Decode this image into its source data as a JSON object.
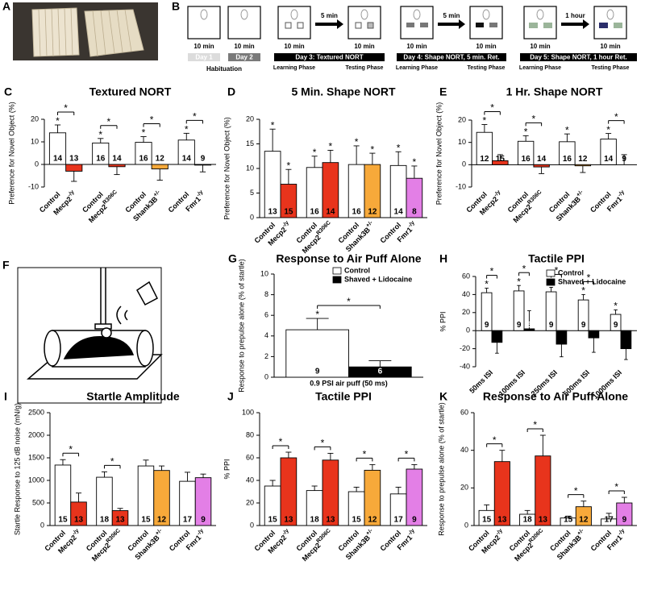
{
  "figure": {
    "panel_a": "A",
    "panel_f": "F"
  },
  "protocol": {
    "panel": "B",
    "box_labels": [
      "10 min",
      "10 min",
      "10 min",
      "10 min",
      "10 min",
      "10 min",
      "10 min",
      "10 min"
    ],
    "intervals": [
      "5 min",
      "5 min",
      "1 hour"
    ],
    "days": [
      "Day 1",
      "Day 2",
      "Day 3: Textured NORT",
      "Day 4: Shape NORT, 5 min. Ret.",
      "Day 5: Shape NORT, 1 hour Ret."
    ],
    "habituation": "Habituation",
    "phases": [
      "Learning Phase",
      "Testing Phase",
      "Learning Phase",
      "Testing Phase",
      "Learning Phase",
      "Testing Phase"
    ]
  },
  "chart_data": [
    {
      "type": "bar",
      "panel": "C",
      "title": "Textured NORT",
      "ylabel": "Preference for Novel Object (%)",
      "categories": [
        "Control",
        "Mecp2",
        "Control",
        "Mecp2",
        "Control",
        "Shank3B",
        "Control",
        "Fmr1"
      ],
      "category_sup": [
        null,
        "-/y",
        null,
        "R306C",
        null,
        "+/-",
        null,
        "-/y"
      ],
      "values": [
        14,
        -3,
        9.5,
        -1,
        9.8,
        -2,
        10.8,
        -0.3
      ],
      "errors": [
        3.5,
        4.5,
        2,
        3.5,
        2.5,
        5,
        3,
        3
      ],
      "colors": [
        "#ffffff",
        "#e8341c",
        "#ffffff",
        "#e8341c",
        "#ffffff",
        "#f7a93a",
        "#ffffff",
        "#e37fe6"
      ],
      "n": [
        14,
        13,
        16,
        14,
        16,
        12,
        14,
        9
      ],
      "stars": [
        "*",
        null,
        "*",
        null,
        "*",
        null,
        "*",
        null
      ],
      "brackets": [
        {
          "bars": [
            0,
            1
          ],
          "label": "*"
        },
        {
          "bars": [
            2,
            3
          ],
          "label": "*"
        },
        {
          "bars": [
            4,
            5
          ],
          "label": "*"
        },
        {
          "bars": [
            6,
            7
          ],
          "label": "*"
        }
      ],
      "ylim": [
        -10,
        20
      ],
      "yticks": [
        -10,
        0,
        10,
        20
      ]
    },
    {
      "type": "bar",
      "panel": "D",
      "title": "5 Min. Shape NORT",
      "ylabel": "Preference for Novel Object (%)",
      "categories": [
        "Control",
        "Mecp2",
        "Control",
        "Mecp2",
        "Control",
        "Shank3B",
        "Control",
        "Fmr1"
      ],
      "category_sup": [
        null,
        "-/y",
        null,
        "R306C",
        null,
        "+/-",
        null,
        "-/y"
      ],
      "values": [
        13.5,
        6.8,
        10.2,
        11.2,
        10.8,
        10.8,
        10.6,
        8
      ],
      "errors": [
        4.5,
        3,
        2.3,
        2.5,
        3.8,
        2.3,
        2.8,
        2.5
      ],
      "colors": [
        "#ffffff",
        "#e8341c",
        "#ffffff",
        "#e8341c",
        "#ffffff",
        "#f7a93a",
        "#ffffff",
        "#e37fe6"
      ],
      "n": [
        13,
        15,
        16,
        14,
        16,
        12,
        14,
        8
      ],
      "stars": [
        "*",
        "*",
        "*",
        "*",
        "*",
        "*",
        "*",
        "*"
      ],
      "brackets": [],
      "ylim": [
        0,
        20
      ],
      "yticks": [
        0,
        5,
        10,
        15,
        20
      ]
    },
    {
      "type": "bar",
      "panel": "E",
      "title": "1 Hr. Shape NORT",
      "ylabel": "Preference for Novel Object (%)",
      "categories": [
        "Control",
        "Mecp2",
        "Control",
        "Mecp2",
        "Control",
        "Shank3B",
        "Control",
        "Fmr1"
      ],
      "category_sup": [
        null,
        "-/y",
        null,
        "R306C",
        null,
        "+/-",
        null,
        "-/y"
      ],
      "values": [
        14.5,
        1.8,
        10.5,
        -1,
        10.3,
        -0.5,
        11.5,
        0
      ],
      "errors": [
        3.5,
        2.7,
        2.5,
        3,
        3.5,
        3,
        2.5,
        4.5
      ],
      "colors": [
        "#ffffff",
        "#e8341c",
        "#ffffff",
        "#e8341c",
        "#ffffff",
        "#f7a93a",
        "#ffffff",
        "#e37fe6"
      ],
      "n": [
        12,
        15,
        16,
        14,
        16,
        12,
        14,
        9
      ],
      "stars": [
        "*",
        null,
        "*",
        null,
        "*",
        null,
        "*",
        null
      ],
      "brackets": [
        {
          "bars": [
            0,
            1
          ],
          "label": "*"
        },
        {
          "bars": [
            2,
            3
          ],
          "label": "*"
        },
        {
          "bars": [
            6,
            7
          ],
          "label": "*"
        }
      ],
      "ylim": [
        -10,
        20
      ],
      "yticks": [
        -10,
        0,
        10,
        20
      ]
    },
    {
      "type": "bar",
      "panel": "G",
      "title": "Response to Air Puff Alone",
      "ylabel": "Response to prepulse alone (% of startle)",
      "categories": [
        "0.9 PSI air puff (50 ms)"
      ],
      "rotated_labels": false,
      "legend": "upper right",
      "series": [
        {
          "name": "Control",
          "color": "#ffffff",
          "values": [
            4.6
          ],
          "errors": [
            1.1
          ],
          "n": [
            9
          ],
          "stars": [
            "*"
          ]
        },
        {
          "name": "Shaved + Lidocaine",
          "color": "#000000",
          "values": [
            1.0
          ],
          "errors": [
            0.6
          ],
          "n": [
            6
          ],
          "stars": [
            null
          ]
        }
      ],
      "brackets": [
        {
          "category": 0,
          "label": "*"
        }
      ],
      "ylim": [
        0,
        10
      ],
      "yticks": [
        0,
        2,
        4,
        6,
        8,
        10
      ]
    },
    {
      "type": "bar",
      "panel": "H",
      "title": "Tactile PPI",
      "ylabel": "% PPI",
      "categories": [
        "50ms ISI",
        "100ms ISI",
        "250ms ISI",
        "500ms ISI",
        "1000ms ISI"
      ],
      "rotated_labels": true,
      "legend": "upper right",
      "series": [
        {
          "name": "Control",
          "color": "#ffffff",
          "values": [
            42,
            44,
            43,
            34,
            18
          ],
          "errors": [
            5,
            6,
            5,
            6,
            5
          ],
          "n": [
            9,
            9,
            9,
            9,
            9
          ],
          "stars": [
            "*",
            "*",
            "*",
            "*",
            "*"
          ]
        },
        {
          "name": "Shaved + Lidocaine",
          "color": "#000000",
          "values": [
            -13,
            2,
            -15,
            -8,
            -20
          ],
          "errors": [
            12,
            20,
            14,
            16,
            12
          ],
          "n": [
            6,
            6,
            6,
            6,
            6
          ],
          "stars": [
            null,
            null,
            null,
            null,
            null
          ]
        }
      ],
      "brackets": [
        {
          "category": 0,
          "label": "*"
        },
        {
          "category": 1,
          "label": "*"
        },
        {
          "category": 2,
          "label": "*"
        },
        {
          "category": 3,
          "label": "*"
        }
      ],
      "ylim": [
        -40,
        60
      ],
      "yticks": [
        -40,
        -20,
        0,
        20,
        40,
        60
      ]
    },
    {
      "type": "bar",
      "panel": "I",
      "title": "Startle Amplitude",
      "ylabel": "Startle Response to 125 dB noise (mN/g)",
      "categories": [
        "Control",
        "Mecp2",
        "Control",
        "Mecp2",
        "Control",
        "Shank3B",
        "Control",
        "Fmr1"
      ],
      "category_sup": [
        null,
        "-/y",
        null,
        "R306C",
        null,
        "+/-",
        null,
        "-/y"
      ],
      "values": [
        1340,
        520,
        1070,
        330,
        1320,
        1220,
        980,
        1060
      ],
      "errors": [
        120,
        200,
        120,
        50,
        130,
        100,
        200,
        80
      ],
      "colors": [
        "#ffffff",
        "#e8341c",
        "#ffffff",
        "#e8341c",
        "#ffffff",
        "#f7a93a",
        "#ffffff",
        "#e37fe6"
      ],
      "n": [
        15,
        13,
        18,
        13,
        15,
        12,
        17,
        9
      ],
      "stars": [
        null,
        null,
        null,
        null,
        null,
        null,
        null,
        null
      ],
      "brackets": [
        {
          "bars": [
            0,
            1
          ],
          "label": "*"
        },
        {
          "bars": [
            2,
            3
          ],
          "label": "*"
        }
      ],
      "ylim": [
        0,
        2500
      ],
      "yticks": [
        0,
        500,
        1000,
        1500,
        2000,
        2500
      ]
    },
    {
      "type": "bar",
      "panel": "J",
      "title": "Tactile PPI",
      "ylabel": "% PPI",
      "categories": [
        "Control",
        "Mecp2",
        "Control",
        "Mecp2",
        "Control",
        "Shank3B",
        "Control",
        "Fmr1"
      ],
      "category_sup": [
        null,
        "-/y",
        null,
        "R306C",
        null,
        "+/-",
        null,
        "-/y"
      ],
      "values": [
        35,
        60,
        31,
        58,
        30,
        49,
        28,
        50
      ],
      "errors": [
        5,
        5,
        4,
        6,
        4,
        5,
        6,
        4
      ],
      "colors": [
        "#ffffff",
        "#e8341c",
        "#ffffff",
        "#e8341c",
        "#ffffff",
        "#f7a93a",
        "#ffffff",
        "#e37fe6"
      ],
      "n": [
        15,
        13,
        18,
        13,
        15,
        12,
        17,
        9
      ],
      "stars": [
        null,
        null,
        null,
        null,
        null,
        null,
        null,
        null
      ],
      "brackets": [
        {
          "bars": [
            0,
            1
          ],
          "label": "*"
        },
        {
          "bars": [
            2,
            3
          ],
          "label": "*"
        },
        {
          "bars": [
            4,
            5
          ],
          "label": "*"
        },
        {
          "bars": [
            6,
            7
          ],
          "label": "*"
        }
      ],
      "ylim": [
        0,
        100
      ],
      "yticks": [
        0,
        20,
        40,
        60,
        80,
        100
      ]
    },
    {
      "type": "bar",
      "panel": "K",
      "title": "Response to Air Puff Alone",
      "ylabel": "Response to prepulse alone (% of startle)",
      "categories": [
        "Control",
        "Mecp2",
        "Control",
        "Mecp2",
        "Control",
        "Shank3B",
        "Control",
        "Fmr1"
      ],
      "category_sup": [
        null,
        "-/y",
        null,
        "R306C",
        null,
        "+/-",
        null,
        "-/y"
      ],
      "values": [
        8,
        34,
        6,
        37,
        4,
        10,
        3.5,
        12
      ],
      "errors": [
        3,
        6,
        2,
        11,
        1,
        3,
        3,
        3
      ],
      "colors": [
        "#ffffff",
        "#e8341c",
        "#ffffff",
        "#e8341c",
        "#ffffff",
        "#f7a93a",
        "#ffffff",
        "#e37fe6"
      ],
      "n": [
        15,
        13,
        18,
        13,
        15,
        12,
        17,
        9
      ],
      "stars": [
        null,
        null,
        null,
        null,
        null,
        null,
        null,
        null
      ],
      "brackets": [
        {
          "bars": [
            0,
            1
          ],
          "label": "*"
        },
        {
          "bars": [
            2,
            3
          ],
          "label": "*"
        },
        {
          "bars": [
            4,
            5
          ],
          "label": "*"
        },
        {
          "bars": [
            6,
            7
          ],
          "label": "*"
        }
      ],
      "ylim": [
        0,
        60
      ],
      "yticks": [
        0,
        20,
        40,
        60
      ]
    }
  ]
}
